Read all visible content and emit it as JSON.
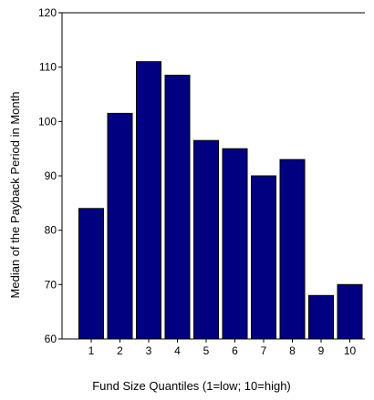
{
  "chart_data": {
    "type": "bar",
    "categories": [
      "1",
      "2",
      "3",
      "4",
      "5",
      "6",
      "7",
      "8",
      "9",
      "10"
    ],
    "values": [
      84,
      101.5,
      111,
      108.5,
      96.5,
      95,
      90,
      93,
      68,
      70
    ],
    "xlabel": "Fund Size Quantiles (1=low; 10=high)",
    "ylabel": "Median of the Payback Period in Month",
    "ylim": [
      60,
      120
    ],
    "yticks": [
      60,
      70,
      80,
      90,
      100,
      110,
      120
    ],
    "grid": false,
    "bar_color": "#000080",
    "axis_color": "#000000"
  }
}
